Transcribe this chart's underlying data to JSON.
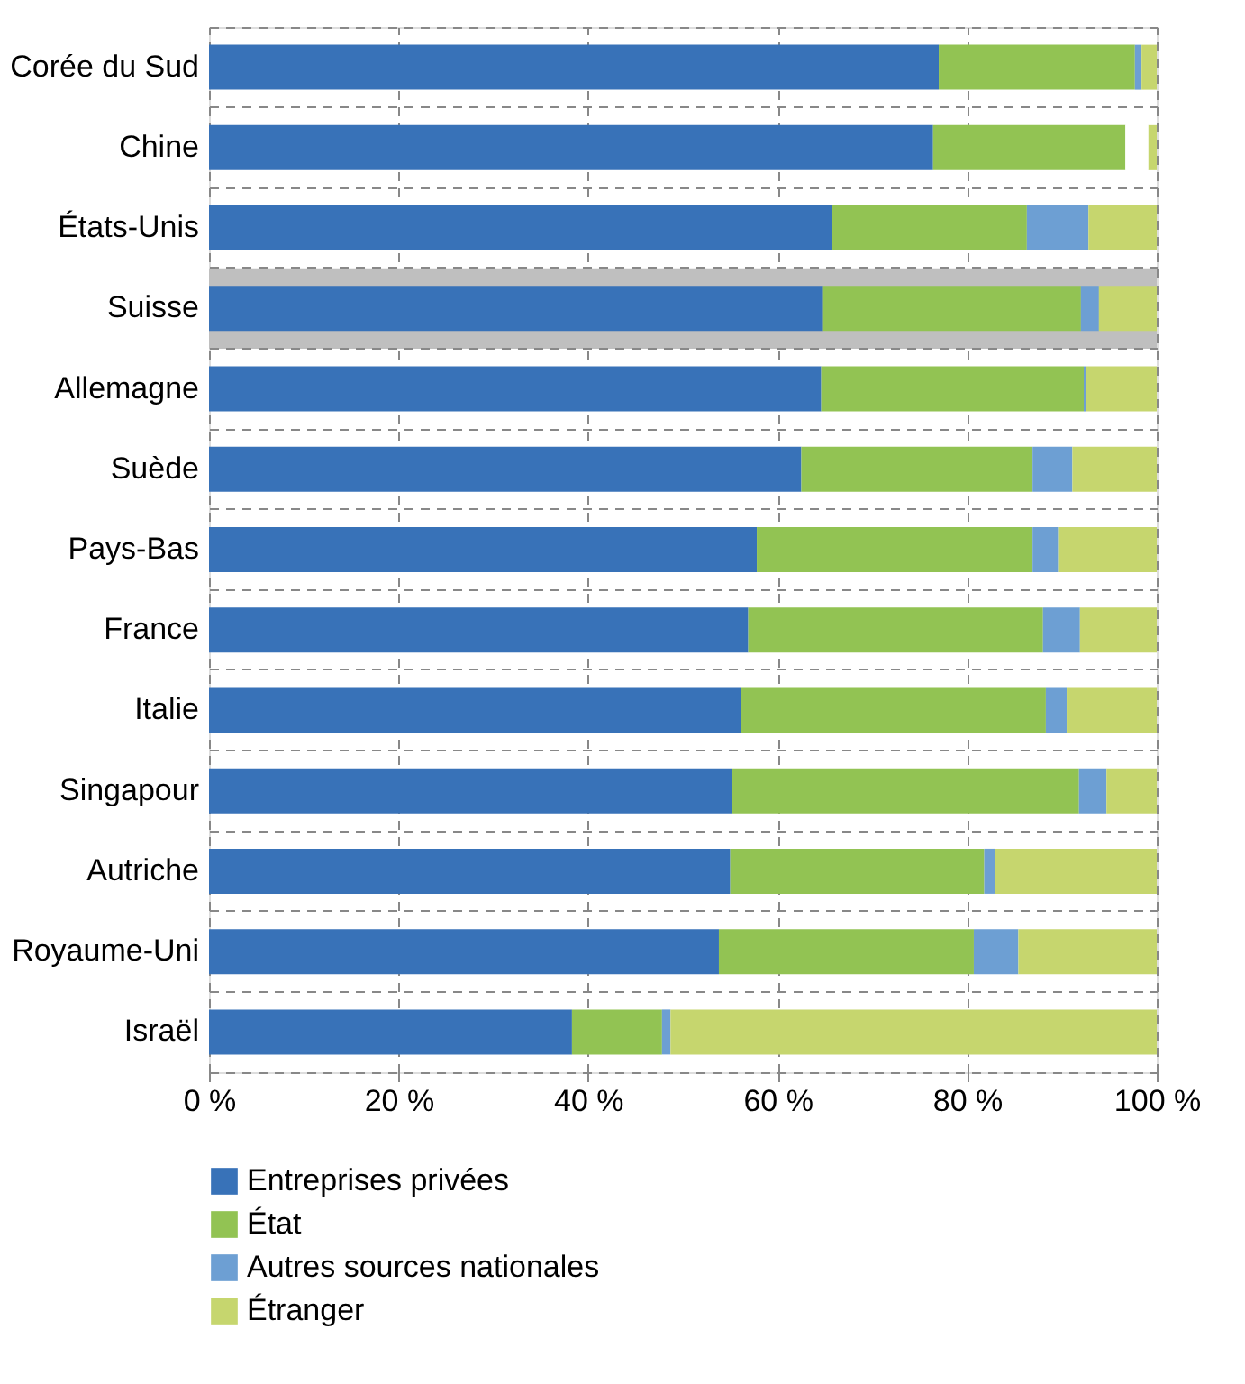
{
  "chart_data": {
    "type": "bar",
    "orientation": "horizontal",
    "stacked": true,
    "categories": [
      "Corée du Sud",
      "Chine",
      "États-Unis",
      "Suisse",
      "Allemagne",
      "Suède",
      "Pays-Bas",
      "France",
      "Italie",
      "Singapour",
      "Autriche",
      "Royaume-Uni",
      "Israël"
    ],
    "series": [
      {
        "name": "Entreprises privées",
        "color": "#3872b8",
        "values": [
          77.0,
          76.4,
          65.7,
          64.8,
          64.6,
          62.5,
          57.8,
          56.9,
          56.1,
          55.2,
          55.0,
          53.8,
          38.3
        ]
      },
      {
        "name": "État",
        "color": "#92c353",
        "values": [
          20.7,
          20.3,
          20.6,
          27.2,
          27.7,
          24.4,
          29.1,
          31.1,
          32.2,
          36.6,
          26.8,
          26.9,
          9.5
        ]
      },
      {
        "name": "Autres sources nationales",
        "color": "#6d9fd3",
        "values": [
          0.7,
          null,
          6.5,
          1.9,
          0.2,
          4.2,
          2.7,
          3.9,
          2.2,
          2.9,
          1.1,
          4.7,
          0.9
        ]
      },
      {
        "color": "#ffffff",
        "values": [
          null,
          2.4,
          null,
          null,
          null,
          null,
          null,
          null,
          null,
          null,
          null,
          null,
          null
        ]
      },
      {
        "name": "Étranger",
        "color": "#c6d66e",
        "values": [
          1.6,
          0.9,
          7.2,
          6.1,
          7.5,
          8.9,
          10.4,
          8.1,
          9.5,
          5.3,
          17.1,
          14.6,
          51.3
        ]
      }
    ],
    "xlim": [
      0,
      100
    ],
    "xticks": [
      {
        "value": 0,
        "label": "0 %"
      },
      {
        "value": 20,
        "label": "20 %"
      },
      {
        "value": 40,
        "label": "40 %"
      },
      {
        "value": 60,
        "label": "60 %"
      },
      {
        "value": 80,
        "label": "80 %"
      },
      {
        "value": 100,
        "label": "100 %"
      }
    ],
    "bands": [
      {
        "axis": "y",
        "from": "Suisse",
        "to": "Suisse",
        "color": "#bfbfbf"
      }
    ],
    "grid": true,
    "legend": "bottom left"
  }
}
